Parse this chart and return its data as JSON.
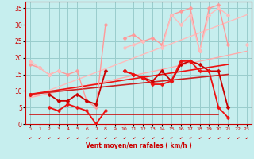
{
  "xlabel": "Vent moyen/en rafales ( km/h )",
  "xlim": [
    -0.5,
    23.5
  ],
  "ylim": [
    0,
    37
  ],
  "yticks": [
    0,
    5,
    10,
    15,
    20,
    25,
    30,
    35
  ],
  "xticks": [
    0,
    1,
    2,
    3,
    4,
    5,
    6,
    7,
    8,
    9,
    10,
    11,
    12,
    13,
    14,
    15,
    16,
    17,
    18,
    19,
    20,
    21,
    22,
    23
  ],
  "bg_color": "#c6eeee",
  "grid_color": "#99cccc",
  "lines": [
    {
      "x": [
        0,
        1,
        2,
        3,
        4,
        5,
        6,
        7,
        8,
        9,
        10,
        11,
        12,
        13,
        14,
        15,
        16,
        17,
        18,
        19,
        20,
        21
      ],
      "y": [
        18,
        17,
        15,
        16,
        15,
        16,
        7,
        5,
        30,
        null,
        26,
        27,
        25,
        26,
        24,
        33,
        34,
        35,
        22,
        35,
        36,
        24
      ],
      "color": "#ff9999",
      "marker": "D",
      "ms": 2.5,
      "lw": 1.0,
      "zorder": 3
    },
    {
      "x": [
        0,
        1,
        2,
        3,
        4,
        5,
        6,
        7,
        8,
        9,
        10,
        11,
        12,
        13,
        14,
        15,
        16,
        17,
        18,
        19,
        20,
        21,
        22,
        23
      ],
      "y": [
        19,
        17,
        15,
        16,
        null,
        null,
        null,
        null,
        null,
        null,
        23,
        24,
        25,
        null,
        23,
        33,
        30,
        33,
        22,
        33,
        35,
        33,
        null,
        24
      ],
      "color": "#ffbbbb",
      "marker": "D",
      "ms": 2.5,
      "lw": 1.0,
      "zorder": 3
    },
    {
      "x": [
        0,
        23
      ],
      "y": [
        8,
        22
      ],
      "color": "#ffaaaa",
      "marker": null,
      "ms": 0,
      "lw": 1.0,
      "zorder": 2
    },
    {
      "x": [
        0,
        23
      ],
      "y": [
        8,
        33
      ],
      "color": "#ffbbbb",
      "marker": null,
      "ms": 0,
      "lw": 1.0,
      "zorder": 2
    },
    {
      "x": [
        0,
        21
      ],
      "y": [
        9,
        15
      ],
      "color": "#cc2222",
      "marker": null,
      "ms": 0,
      "lw": 1.2,
      "zorder": 2
    },
    {
      "x": [
        0,
        21
      ],
      "y": [
        9,
        18
      ],
      "color": "#ee1111",
      "marker": null,
      "ms": 0,
      "lw": 1.2,
      "zorder": 2
    },
    {
      "x": [
        0,
        1,
        2,
        3,
        4,
        5,
        6,
        7,
        8,
        9,
        10,
        11,
        12,
        13,
        14,
        15,
        16,
        17,
        18,
        19,
        20,
        21
      ],
      "y": [
        9,
        null,
        9,
        7,
        7,
        9,
        7,
        6,
        16,
        null,
        16,
        15,
        14,
        13,
        16,
        13,
        18,
        19,
        18,
        16,
        16,
        5
      ],
      "color": "#cc0000",
      "marker": "D",
      "ms": 2.5,
      "lw": 1.3,
      "zorder": 4
    },
    {
      "x": [
        0,
        1,
        2,
        3,
        4,
        5,
        6,
        7,
        8,
        9,
        10,
        11,
        12,
        13,
        14,
        15,
        16,
        17,
        18,
        19,
        20,
        21
      ],
      "y": [
        9,
        null,
        5,
        4,
        6,
        5,
        4,
        0,
        4,
        null,
        16,
        15,
        14,
        12,
        12,
        13,
        19,
        19,
        16,
        16,
        5,
        2
      ],
      "color": "#ee1111",
      "marker": "D",
      "ms": 2.5,
      "lw": 1.3,
      "zorder": 4
    },
    {
      "x": [
        0,
        20
      ],
      "y": [
        3,
        3
      ],
      "color": "#cc0000",
      "marker": null,
      "ms": 0,
      "lw": 1.1,
      "zorder": 2
    }
  ],
  "wind_arrows": {
    "x": [
      0,
      1,
      2,
      3,
      4,
      5,
      6,
      7,
      8,
      9,
      10,
      11,
      12,
      13,
      14,
      15,
      16,
      17,
      18,
      19,
      20,
      21,
      22,
      23
    ],
    "symbols": [
      "k",
      "k",
      "k",
      "k",
      "k",
      "k",
      "k",
      "↓",
      "↑",
      "k",
      "k",
      "k",
      "k",
      "k",
      "k",
      "k",
      "k",
      "k",
      "k",
      "k",
      "k",
      "k",
      "k",
      "k"
    ]
  }
}
